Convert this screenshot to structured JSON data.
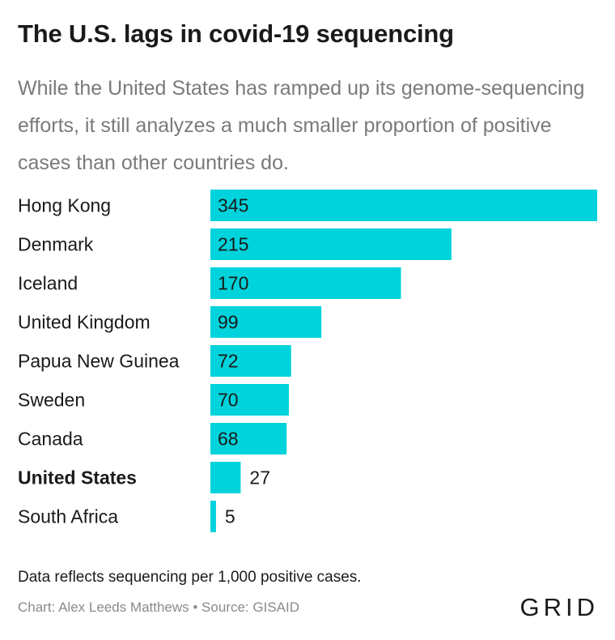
{
  "title": "The U.S. lags in covid-19 sequencing",
  "subtitle": "While the United States has ramped up its genome-sequencing efforts, it still analyzes a much smaller proportion of positive cases than other countries do.",
  "note": "Data reflects sequencing per 1,000 positive cases.",
  "source": "Chart: Alex Leeds Matthews • Source: GISAID",
  "logo": "GRID",
  "colors": {
    "bar": "#00d3db",
    "text": "#1a1a1a",
    "muted": "#7a7a7a"
  },
  "chart_data": {
    "type": "bar",
    "orientation": "horizontal",
    "categories": [
      "Hong Kong",
      "Denmark",
      "Iceland",
      "United Kingdom",
      "Papua New Guinea",
      "Sweden",
      "Canada",
      "United States",
      "South Africa"
    ],
    "values": [
      345,
      215,
      170,
      99,
      72,
      70,
      68,
      27,
      5
    ],
    "highlight": "United States",
    "xlim": [
      0,
      345
    ],
    "grid": false,
    "legend": "none"
  }
}
